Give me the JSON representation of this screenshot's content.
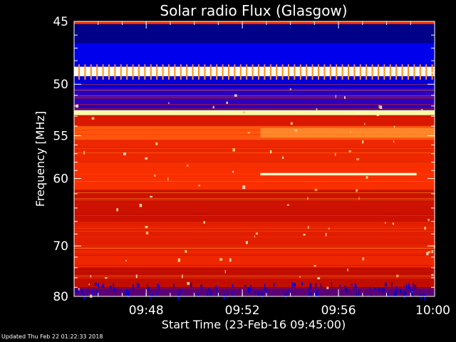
{
  "chart_data": {
    "type": "heatmap",
    "title": "Solar radio Flux (Glasgow)",
    "xlabel": "Start Time (23-Feb-16 09:45:00)",
    "ylabel": "Frequency [MHz]",
    "x_range": [
      "09:45:00",
      "10:00:00"
    ],
    "y_range": [
      45,
      80
    ],
    "y_ticks": [
      {
        "value": 45,
        "label": "45"
      },
      {
        "value": 50,
        "label": "50"
      },
      {
        "value": 55,
        "label": "55"
      },
      {
        "value": 60,
        "label": "60"
      },
      {
        "value": 70,
        "label": "70"
      },
      {
        "value": 80,
        "label": "80"
      }
    ],
    "x_ticks": [
      {
        "value": "09:48",
        "label": "09:48"
      },
      {
        "value": "09:52",
        "label": "09:52"
      },
      {
        "value": "09:56",
        "label": "09:56"
      },
      {
        "value": "10:00",
        "label": "10:00"
      }
    ],
    "colormap": [
      "#000088",
      "#0000ff",
      "#aa0000",
      "#dd1a00",
      "#ff3300",
      "#ff9922",
      "#ffffaa",
      "#ffffff"
    ],
    "bands": [
      {
        "f0": 45.0,
        "f1": 45.2,
        "level": 0.55
      },
      {
        "f0": 45.2,
        "f1": 46.6,
        "level": 0.0
      },
      {
        "f0": 46.6,
        "f1": 48.5,
        "level": 0.12
      },
      {
        "f0": 48.5,
        "f1": 49.3,
        "level": 0.98
      },
      {
        "f0": 49.3,
        "f1": 50.3,
        "level": 0.1
      },
      {
        "f0": 50.3,
        "f1": 52.4,
        "level": 0.18
      },
      {
        "f0": 52.4,
        "f1": 52.9,
        "level": 0.85
      },
      {
        "f0": 52.9,
        "f1": 54.0,
        "level": 0.42
      },
      {
        "f0": 54.0,
        "f1": 55.5,
        "level": 0.62
      },
      {
        "f0": 55.5,
        "f1": 58.0,
        "level": 0.5
      },
      {
        "f0": 58.0,
        "f1": 61.5,
        "level": 0.55
      },
      {
        "f0": 61.5,
        "f1": 66.0,
        "level": 0.38
      },
      {
        "f0": 66.0,
        "f1": 70.0,
        "level": 0.45
      },
      {
        "f0": 70.0,
        "f1": 74.0,
        "level": 0.5
      },
      {
        "f0": 74.0,
        "f1": 78.0,
        "level": 0.35
      },
      {
        "f0": 78.0,
        "f1": 80.0,
        "level": 0.22
      }
    ],
    "events": [
      {
        "name": "drift-line",
        "t0": "09:52:45",
        "t1": "09:59:15",
        "f0": 59.3,
        "f1": 59.6,
        "level": 0.9
      },
      {
        "name": "enhancement",
        "t0": "09:52:45",
        "t1": "10:00:00",
        "f0": 54.2,
        "f1": 55.2,
        "level": 0.75
      }
    ]
  },
  "footer": {
    "updated": "Updated Thu Feb 22 01:22:33 2018"
  }
}
